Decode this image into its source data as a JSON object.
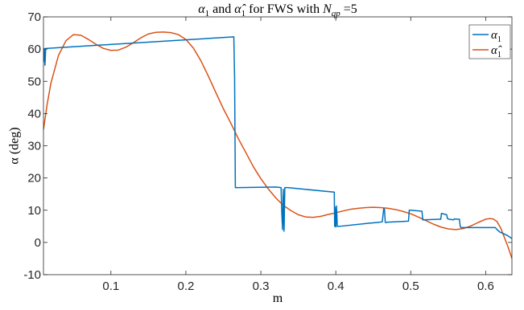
{
  "chart_data": {
    "type": "line",
    "title": "α₁ and α̂₁ for FWS with N_qp =5",
    "title_parts": {
      "prefix": "α",
      "prefix_sub": "1",
      "middle": " and ",
      "hat_symbol": "α̂",
      "hat_sub": "1",
      "suffix": " for FWS with ",
      "n": "N",
      "n_sub": "qp",
      "n_value": " =5"
    },
    "xlabel": "m",
    "ylabel": "α (deg)",
    "xlim": [
      0.01,
      0.635
    ],
    "ylim": [
      -10,
      70
    ],
    "x_ticks": [
      0.1,
      0.2,
      0.3,
      0.4,
      0.5,
      0.6
    ],
    "y_ticks": [
      -10,
      0,
      10,
      20,
      30,
      40,
      50,
      60,
      70
    ],
    "grid": false,
    "legend": {
      "position": "top-right",
      "entries": [
        {
          "symbol": "α",
          "sub": "1",
          "hat": false
        },
        {
          "symbol": "α",
          "sub": "1",
          "hat": true
        }
      ]
    },
    "colors": {
      "alpha1": "#0072BD",
      "alpha1_hat": "#D95319"
    },
    "series": [
      {
        "name": "α₁",
        "x": [
          0.01,
          0.011,
          0.012,
          0.013,
          0.264,
          0.2645,
          0.265,
          0.266,
          0.267,
          0.268,
          0.269,
          0.27,
          0.32,
          0.327,
          0.328,
          0.329,
          0.33,
          0.331,
          0.332,
          0.336,
          0.398,
          0.3985,
          0.399,
          0.4,
          0.401,
          0.402,
          0.403,
          0.404,
          0.405,
          0.446,
          0.447,
          0.455,
          0.456,
          0.462,
          0.464,
          0.465,
          0.466,
          0.468,
          0.469,
          0.47,
          0.497,
          0.498,
          0.5,
          0.515,
          0.516,
          0.517,
          0.538,
          0.54,
          0.541,
          0.548,
          0.549,
          0.55,
          0.551,
          0.557,
          0.558,
          0.565,
          0.566,
          0.567,
          0.595,
          0.6,
          0.613,
          0.615,
          0.617,
          0.619,
          0.621,
          0.625,
          0.63,
          0.635
        ],
        "y": [
          56,
          60.2,
          55,
          60.2,
          63.8,
          57,
          51,
          17,
          17,
          17,
          17,
          17,
          17.2,
          17,
          9,
          4,
          16.5,
          3.5,
          17,
          17,
          15.6,
          5,
          11,
          4.8,
          11.3,
          5,
          5,
          5,
          5,
          6,
          6,
          6.2,
          6.2,
          6.4,
          10.5,
          10.3,
          6.2,
          6.2,
          6.3,
          6.3,
          6.6,
          10,
          10,
          9.7,
          7,
          7,
          7.2,
          7.2,
          9,
          8.6,
          7.4,
          7.3,
          7.2,
          7,
          7.3,
          7.2,
          5,
          4.6,
          4.6,
          4.6,
          4.6,
          4,
          3.6,
          3.2,
          3,
          2.6,
          2,
          1.2
        ]
      },
      {
        "name": "α̂₁",
        "x": [
          0.01,
          0.015,
          0.02,
          0.03,
          0.04,
          0.05,
          0.06,
          0.07,
          0.08,
          0.09,
          0.1,
          0.11,
          0.12,
          0.13,
          0.14,
          0.15,
          0.16,
          0.17,
          0.18,
          0.19,
          0.2,
          0.21,
          0.22,
          0.23,
          0.24,
          0.25,
          0.26,
          0.27,
          0.28,
          0.29,
          0.3,
          0.31,
          0.32,
          0.33,
          0.34,
          0.35,
          0.36,
          0.37,
          0.38,
          0.39,
          0.4,
          0.41,
          0.42,
          0.43,
          0.44,
          0.45,
          0.46,
          0.47,
          0.48,
          0.49,
          0.5,
          0.51,
          0.52,
          0.53,
          0.54,
          0.55,
          0.56,
          0.57,
          0.58,
          0.59,
          0.6,
          0.605,
          0.61,
          0.615,
          0.62,
          0.625,
          0.63,
          0.635
        ],
        "y": [
          35,
          43,
          49.5,
          58,
          62.6,
          64.5,
          64.3,
          63,
          61.5,
          60.2,
          59.6,
          59.7,
          60.6,
          62,
          63.5,
          64.7,
          65.2,
          65.3,
          65.1,
          64.5,
          63,
          60.3,
          56.4,
          51.6,
          46.5,
          41.5,
          37,
          32.2,
          27.9,
          23.5,
          19.8,
          16.6,
          13.8,
          11.5,
          9.9,
          8.6,
          7.9,
          7.8,
          8.1,
          8.7,
          9.2,
          9.8,
          10.3,
          10.6,
          10.8,
          10.9,
          10.8,
          10.6,
          10.2,
          9.6,
          8.9,
          7.9,
          6.8,
          5.7,
          4.8,
          4.2,
          4.0,
          4.3,
          5.1,
          6.2,
          7.2,
          7.4,
          7.3,
          6.5,
          4.5,
          1.5,
          -1.5,
          -5
        ]
      }
    ]
  }
}
